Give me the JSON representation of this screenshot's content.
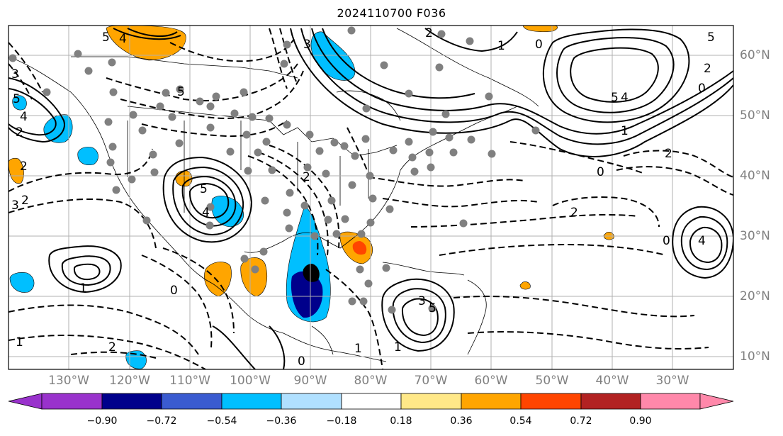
{
  "title": "2024110700 F036",
  "lon_labels": [
    "130°W",
    "120°W",
    "110°W",
    "100°W",
    "90°W",
    "80°W",
    "70°W",
    "60°W",
    "50°W",
    "40°W",
    "30°W"
  ],
  "lat_labels": [
    "60°N",
    "50°N",
    "40°N",
    "30°N",
    "20°N",
    "10°N"
  ],
  "colorbar": {
    "ticks": [
      "−0.90",
      "−0.72",
      "−0.54",
      "−0.36",
      "−0.18",
      "0.18",
      "0.36",
      "0.54",
      "0.72",
      "0.90"
    ],
    "colors": [
      "#9932cc",
      "#00008b",
      "#3a5bd0",
      "#00bfff",
      "#b0e0ff",
      "#ffffff",
      "#ffe888",
      "#ffa500",
      "#ff4500",
      "#b22222",
      "#ff88aa"
    ]
  },
  "contour_labels": [
    "5",
    "4",
    "3",
    "5",
    "4",
    "2",
    "5",
    "5",
    "4",
    "3",
    "2",
    "1",
    "0",
    "5",
    "4",
    "2",
    "1",
    "0",
    "2",
    "1",
    "2",
    "3",
    "4",
    "5",
    "2",
    "3",
    "5",
    "1",
    "2",
    "1",
    "0",
    "1",
    "0",
    "2",
    "0",
    "0",
    "2"
  ],
  "colors": {
    "positive_contour": "#000000",
    "negative_contour": "#000000",
    "grid": "#b0b0b0",
    "stations": "#808080"
  }
}
